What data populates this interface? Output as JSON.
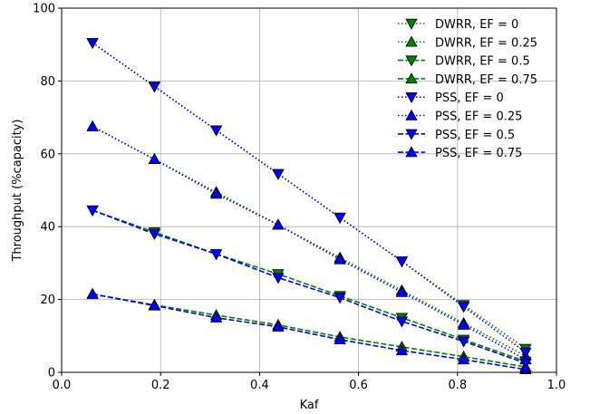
{
  "chart_data": {
    "type": "line",
    "title": "",
    "xlabel": "Kaf",
    "ylabel": "Throughput (%capacity)",
    "xlim": [
      0.0,
      1.0
    ],
    "ylim": [
      0,
      100
    ],
    "xticks": [
      "0.0",
      "0.2",
      "0.4",
      "0.6",
      "0.8",
      "1.0"
    ],
    "yticks": [
      "0",
      "20",
      "40",
      "60",
      "80",
      "100"
    ],
    "grid": true,
    "legend_position": "top-right",
    "x": [
      0.0625,
      0.1875,
      0.3125,
      0.4375,
      0.5625,
      0.6875,
      0.8125,
      0.9375
    ],
    "series": [
      {
        "name": "DWRR, EF = 0",
        "color": "#008000",
        "linestyle": "dotted",
        "marker": "triangle-down",
        "values": [
          90.5,
          78.5,
          66.5,
          54.5,
          42.5,
          30.5,
          18.5,
          6.5
        ]
      },
      {
        "name": "DWRR, EF = 0.25",
        "color": "#008000",
        "linestyle": "dotted",
        "marker": "triangle-up",
        "values": [
          67.5,
          58.5,
          49.5,
          40.5,
          31.5,
          22.5,
          13.5,
          4.5
        ]
      },
      {
        "name": "DWRR, EF = 0.5",
        "color": "#008000",
        "linestyle": "dashed",
        "marker": "triangle-down",
        "values": [
          44.5,
          38.5,
          32.5,
          27.0,
          21.0,
          15.0,
          9.0,
          3.0
        ]
      },
      {
        "name": "DWRR, EF = 0.75",
        "color": "#008000",
        "linestyle": "dashed",
        "marker": "triangle-up",
        "values": [
          21.5,
          18.5,
          15.7,
          13.0,
          9.7,
          7.0,
          4.3,
          1.5
        ]
      },
      {
        "name": "PSS, EF = 0",
        "color": "#0000ff",
        "linestyle": "dotted",
        "marker": "triangle-down",
        "values": [
          90.5,
          78.5,
          66.5,
          54.5,
          42.5,
          30.5,
          18.0,
          5.5
        ]
      },
      {
        "name": "PSS, EF = 0.25",
        "color": "#0000ff",
        "linestyle": "dotted",
        "marker": "triangle-up",
        "values": [
          67.5,
          58.5,
          49.0,
          40.5,
          31.0,
          22.0,
          13.0,
          3.5
        ]
      },
      {
        "name": "PSS, EF = 0.5",
        "color": "#0000ff",
        "linestyle": "dashed",
        "marker": "triangle-down",
        "values": [
          44.5,
          38.0,
          32.5,
          26.0,
          20.5,
          14.0,
          8.5,
          2.5
        ]
      },
      {
        "name": "PSS, EF = 0.75",
        "color": "#0000ff",
        "linestyle": "dashed",
        "marker": "triangle-up",
        "values": [
          21.5,
          18.3,
          15.0,
          12.5,
          9.0,
          6.0,
          3.5,
          0.8
        ]
      }
    ]
  }
}
